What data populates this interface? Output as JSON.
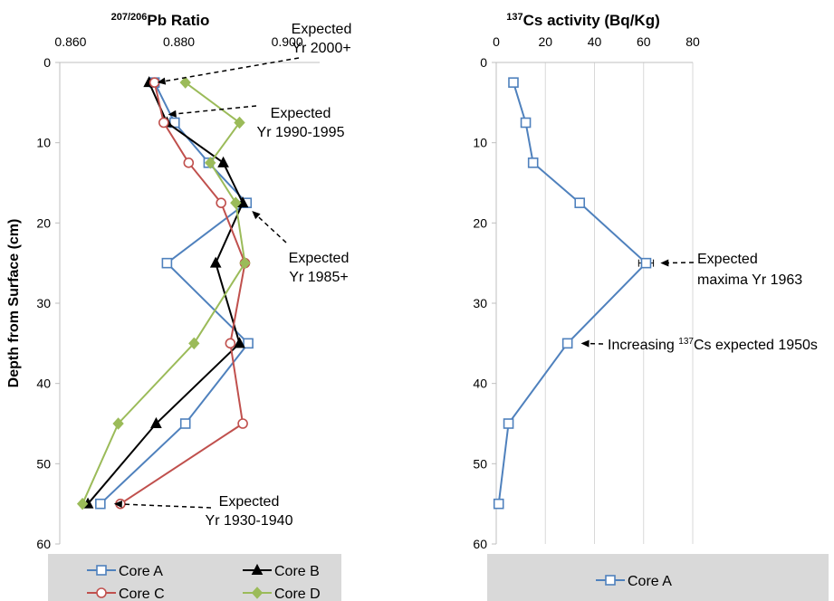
{
  "chart_data": [
    {
      "type": "line",
      "title_sup": "207/206",
      "title_rest": "Pb Ratio",
      "xlabel": "",
      "ylabel": "Depth from Surface  (cm)",
      "xlim": [
        0.858,
        0.906
      ],
      "ylim": [
        0,
        60
      ],
      "y_inverted": true,
      "x_axis_position": "top",
      "x_ticks": [
        0.86,
        0.88,
        0.9
      ],
      "x_tick_labels": [
        "0.860",
        "0.880",
        "0.900"
      ],
      "y_ticks": [
        0,
        10,
        20,
        30,
        40,
        50,
        60
      ],
      "y_tick_labels": [
        "0",
        "10",
        "20",
        "30",
        "40",
        "50",
        "60"
      ],
      "grid": false,
      "legend_position": "bottom",
      "series": [
        {
          "name": "Core A",
          "color": "#4f81bd",
          "marker": "open-square",
          "points": [
            [
              0.8755,
              2.5
            ],
            [
              0.8792,
              7.5
            ],
            [
              0.8855,
              12.5
            ],
            [
              0.8925,
              17.5
            ],
            [
              0.8778,
              25
            ],
            [
              0.8928,
              35
            ],
            [
              0.8812,
              45
            ],
            [
              0.8655,
              55
            ]
          ]
        },
        {
          "name": "Core B",
          "color": "#000000",
          "marker": "filled-triangle",
          "points": [
            [
              0.8745,
              2.5
            ],
            [
              0.8778,
              7.5
            ],
            [
              0.8882,
              12.5
            ],
            [
              0.8918,
              17.5
            ],
            [
              0.8868,
              25
            ],
            [
              0.8912,
              35
            ],
            [
              0.8758,
              45
            ],
            [
              0.8632,
              55
            ]
          ]
        },
        {
          "name": "Core C",
          "color": "#c0504d",
          "marker": "open-circle",
          "points": [
            [
              0.8755,
              2.5
            ],
            [
              0.8772,
              7.5
            ],
            [
              0.8818,
              12.5
            ],
            [
              0.8878,
              17.5
            ],
            [
              0.8922,
              25
            ],
            [
              0.8895,
              35
            ],
            [
              0.8918,
              45
            ],
            [
              0.8692,
              55
            ]
          ]
        },
        {
          "name": "Core D",
          "color": "#9bbb59",
          "marker": "filled-diamond",
          "points": [
            [
              0.8812,
              2.5
            ],
            [
              0.8912,
              7.5
            ],
            [
              0.8858,
              12.5
            ],
            [
              0.8905,
              17.5
            ],
            [
              0.8922,
              25
            ],
            [
              0.8828,
              35
            ],
            [
              0.8688,
              45
            ],
            [
              0.8622,
              55
            ]
          ]
        }
      ],
      "annotations": [
        {
          "lines": [
            "Expected",
            "Yr 2000+"
          ],
          "points_to": [
            0.876,
            2.5
          ]
        },
        {
          "lines": [
            "Expected",
            "Yr 1990-1995"
          ],
          "points_to": [
            0.878,
            6.5
          ]
        },
        {
          "lines": [
            "Expected",
            "Yr 1985+"
          ],
          "points_to": [
            0.8935,
            18.5
          ]
        },
        {
          "lines": [
            "Expected",
            "Yr 1930-1940"
          ],
          "points_to": [
            0.868,
            55
          ]
        }
      ]
    },
    {
      "type": "line",
      "title_sup": "137",
      "title_rest": "Cs activity (Bq/Kg)",
      "xlabel": "",
      "ylabel": "",
      "xlim": [
        0,
        80
      ],
      "ylim": [
        0,
        60
      ],
      "y_inverted": true,
      "x_axis_position": "top",
      "x_ticks": [
        0,
        20,
        40,
        60,
        80
      ],
      "x_tick_labels": [
        "0",
        "20",
        "40",
        "60",
        "80"
      ],
      "y_ticks": [
        0,
        10,
        20,
        30,
        40,
        50,
        60
      ],
      "y_tick_labels": [
        "0",
        "10",
        "20",
        "30",
        "40",
        "50",
        "60"
      ],
      "grid": true,
      "legend_position": "bottom",
      "series": [
        {
          "name": "Core A",
          "color": "#4f81bd",
          "marker": "open-square",
          "points": [
            [
              7,
              2.5
            ],
            [
              12,
              7.5
            ],
            [
              15,
              12.5
            ],
            [
              34,
              17.5
            ],
            [
              61,
              25
            ],
            [
              29,
              35
            ],
            [
              5,
              45
            ],
            [
              1,
              55
            ]
          ],
          "error_bar": {
            "point_index": 4,
            "minus": 3,
            "plus": 3
          }
        }
      ],
      "annotations": [
        {
          "lines": [
            "Expected",
            "maxima  Yr 1963"
          ],
          "points_to": [
            65,
            25
          ]
        },
        {
          "lines_rich": [
            [
              "Increasing ",
              "137",
              "Cs expected 1950s"
            ]
          ],
          "points_to": [
            33,
            35
          ]
        }
      ]
    }
  ]
}
